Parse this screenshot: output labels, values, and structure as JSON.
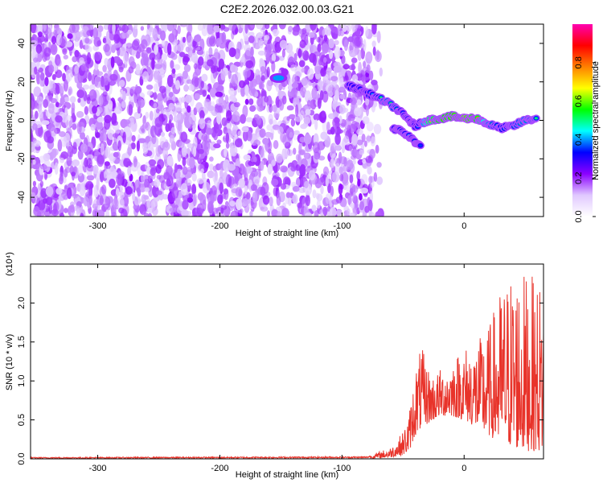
{
  "chart_data": [
    {
      "type": "heatmap",
      "title": "C2E2.2026.032.00.03.G21",
      "xlabel": "Height of straight line (km)",
      "ylabel": "Frequency (Hz)",
      "xlim": [
        -355,
        65
      ],
      "ylim": [
        -50,
        50
      ],
      "x_ticks": [
        -300,
        -200,
        -100,
        0
      ],
      "y_ticks": [
        -40,
        -20,
        0,
        20,
        40
      ],
      "colorbar": {
        "label": "Normalized spectral amplitude",
        "range": [
          0,
          1
        ],
        "ticks": [
          "0.0",
          "0.2",
          "0.4",
          "0.6",
          "0.8"
        ],
        "tick_values": [
          0.0,
          0.2,
          0.4,
          0.6,
          0.8
        ],
        "colors": [
          "#ffffff",
          "#e0c8ff",
          "#8b00ff",
          "#0000ff",
          "#00ffff",
          "#00ff00",
          "#ffff00",
          "#ff8000",
          "#ff0000",
          "#ff00b0"
        ]
      },
      "noise_region_x": [
        -355,
        -75
      ],
      "ridge": {
        "description": "main signal trace",
        "x": [
          -95,
          -85,
          -75,
          -65,
          -55,
          -45,
          -40,
          -30,
          -20,
          -10,
          0,
          10,
          20,
          30,
          40,
          50,
          60
        ],
        "y": [
          18,
          16,
          13,
          10,
          6,
          0,
          -3,
          0,
          1,
          2,
          1,
          1,
          -2,
          -4,
          -3,
          0,
          1
        ],
        "amplitude": [
          0.2,
          0.35,
          0.4,
          0.55,
          0.5,
          0.3,
          0.3,
          0.7,
          0.8,
          0.8,
          0.85,
          0.8,
          0.55,
          0.45,
          0.5,
          0.55,
          0.5
        ]
      },
      "branch": {
        "x": [
          -58,
          -50,
          -42,
          -35
        ],
        "y": [
          -4,
          -6,
          -10,
          -14
        ],
        "amplitude": [
          0.4,
          0.45,
          0.4,
          0.35
        ]
      },
      "blob": {
        "x": -152,
        "y": 22,
        "amplitude": 0.4
      }
    },
    {
      "type": "line",
      "title": "",
      "xlabel": "Height of straight line (km)",
      "ylabel": "SNR (10 * v/v)",
      "y_scale_label": "(x10⁴)",
      "xlim": [
        -355,
        65
      ],
      "ylim": [
        0,
        2.5
      ],
      "x_ticks": [
        -300,
        -200,
        -100,
        0
      ],
      "y_ticks": [
        "0.0",
        "0.5",
        "1.0",
        "1.5",
        "2.0"
      ],
      "y_tick_values": [
        0.0,
        0.5,
        1.0,
        1.5,
        2.0
      ],
      "series": [
        {
          "name": "SNR",
          "color": "#e8332a",
          "envelope_x": [
            -355,
            -80,
            -60,
            -50,
            -45,
            -40,
            -35,
            -30,
            -25,
            -20,
            -10,
            0,
            10,
            20,
            30,
            40,
            50,
            60,
            65
          ],
          "envelope_upper": [
            0.02,
            0.03,
            0.15,
            0.35,
            0.6,
            1.2,
            1.45,
            1.2,
            1.1,
            1.15,
            1.3,
            1.45,
            1.5,
            1.7,
            2.2,
            2.45,
            2.4,
            2.3,
            2.3
          ],
          "envelope_lower": [
            0.0,
            0.0,
            0.02,
            0.05,
            0.1,
            0.3,
            0.4,
            0.45,
            0.5,
            0.55,
            0.55,
            0.5,
            0.4,
            0.3,
            0.2,
            0.15,
            0.1,
            0.1,
            0.1
          ]
        }
      ]
    }
  ]
}
